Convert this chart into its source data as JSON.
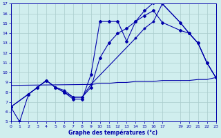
{
  "title": "Graphe des températures (°c)",
  "bg_color": "#d0eeee",
  "plot_bg_color": "#d0eeee",
  "line_color": "#0000aa",
  "grid_color": "#aacccc",
  "ylim": [
    5,
    17
  ],
  "xlim": [
    0,
    23
  ],
  "yticks": [
    5,
    6,
    7,
    8,
    9,
    10,
    11,
    12,
    13,
    14,
    15,
    16,
    17
  ],
  "xticks": [
    0,
    1,
    2,
    3,
    4,
    5,
    6,
    7,
    8,
    9,
    10,
    11,
    12,
    13,
    14,
    15,
    16,
    17,
    19,
    20,
    21,
    22,
    23
  ],
  "line1_x": [
    0,
    1,
    2,
    3,
    4,
    5,
    6,
    7,
    8,
    9,
    10,
    11,
    12,
    13,
    14,
    15,
    16,
    17,
    19,
    20,
    21,
    22,
    23
  ],
  "line1_y": [
    6.5,
    5.0,
    7.8,
    8.5,
    9.2,
    8.5,
    8.0,
    7.3,
    7.3,
    9.8,
    15.2,
    15.2,
    15.2,
    13.2,
    15.2,
    16.3,
    17.1,
    17.0,
    15.1,
    14.0,
    13.0,
    11.0,
    9.5
  ],
  "line2_x": [
    0,
    2,
    3,
    4,
    5,
    6,
    7,
    8,
    9,
    10,
    11,
    12,
    13,
    14,
    15,
    16,
    17,
    19,
    20,
    21,
    22,
    23
  ],
  "line2_y": [
    6.5,
    7.8,
    8.5,
    9.2,
    8.5,
    8.0,
    7.5,
    7.5,
    8.5,
    11.5,
    13.0,
    14.0,
    14.5,
    15.2,
    15.8,
    16.3,
    15.1,
    14.3,
    14.0,
    13.0,
    11.0,
    9.5
  ],
  "line3_x": [
    0,
    3,
    4,
    5,
    6,
    7,
    8,
    9,
    14,
    15,
    16,
    17,
    19,
    20,
    21,
    22,
    23
  ],
  "line3_y": [
    6.5,
    8.5,
    9.2,
    8.5,
    8.2,
    7.5,
    7.5,
    8.8,
    13.5,
    14.5,
    15.2,
    17.0,
    15.1,
    14.0,
    13.0,
    11.0,
    9.5
  ],
  "line4_x": [
    0,
    9,
    10,
    11,
    12,
    13,
    14,
    15,
    16,
    17,
    19,
    20,
    21,
    22,
    23
  ],
  "line4_y": [
    8.7,
    8.8,
    8.9,
    8.9,
    9.0,
    9.0,
    9.1,
    9.1,
    9.1,
    9.2,
    9.2,
    9.2,
    9.3,
    9.3,
    9.5
  ]
}
